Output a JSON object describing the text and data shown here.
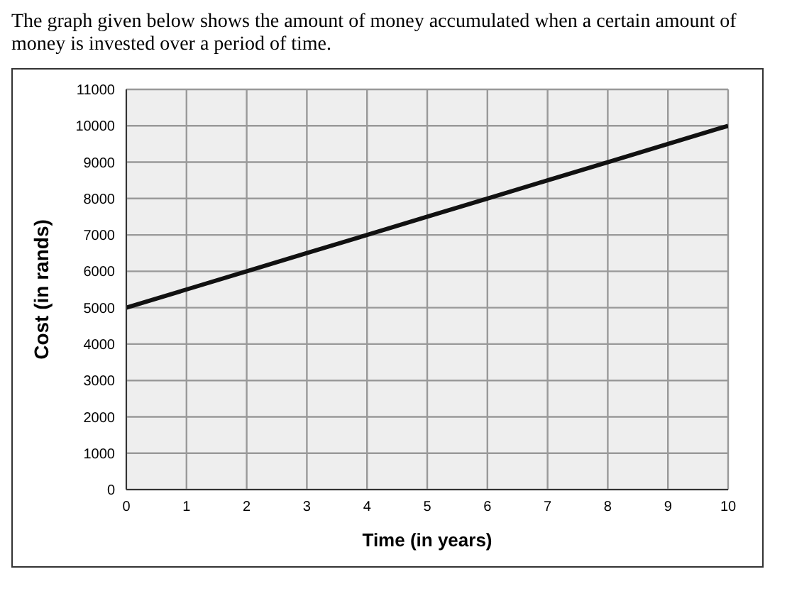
{
  "chart_data": {
    "type": "line",
    "title": "The graph given below shows the amount of money accumulated when a certain amount of money is invested over a period of time.",
    "xlabel": "Time (in years)",
    "ylabel": "Cost (in rands)",
    "x": [
      0,
      1,
      2,
      3,
      4,
      5,
      6,
      7,
      8,
      9,
      10
    ],
    "series": [
      {
        "color": "#111111",
        "values": [
          5000,
          5500,
          6000,
          6500,
          7000,
          7500,
          8000,
          8500,
          9000,
          9500,
          10000
        ]
      }
    ],
    "xlim": [
      0,
      10
    ],
    "xticks": [
      0,
      1,
      2,
      3,
      4,
      5,
      6,
      7,
      8,
      9,
      10
    ],
    "ylim": [
      0,
      11000
    ],
    "yticks": [
      0,
      1000,
      2000,
      3000,
      4000,
      5000,
      6000,
      7000,
      8000,
      9000,
      10000,
      11000
    ],
    "grid": true,
    "marker": "none",
    "line_style": "solid"
  }
}
